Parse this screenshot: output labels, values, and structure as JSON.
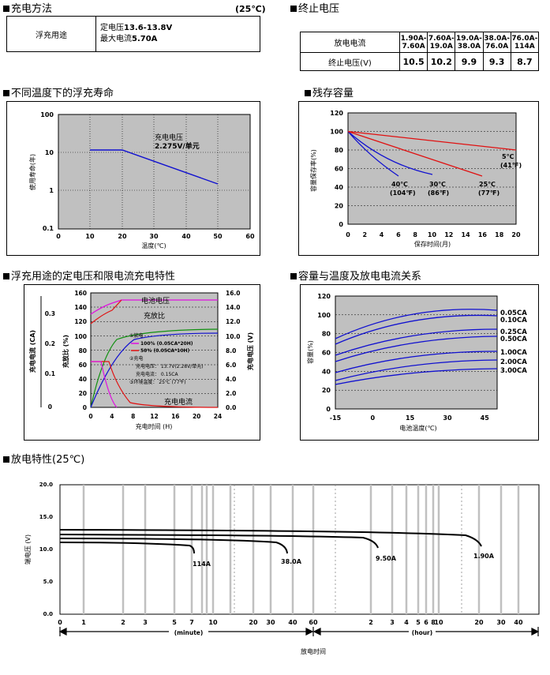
{
  "charging_method": {
    "title": "充电方法",
    "temp": "(25℃)",
    "row_label": "浮充用途",
    "line1_prefix": "定电压",
    "line1_value": "13.6-13.8V",
    "line2_prefix": "最大电流",
    "line2_value": "5.70A"
  },
  "cutoff_voltage": {
    "title": "终止电压",
    "row1_label": "放电电流",
    "row2_label": "终止电压(V)",
    "currents": [
      [
        "1.90A-",
        "7.60A"
      ],
      [
        "7.60A-",
        "19.0A"
      ],
      [
        "19.0A-",
        "38.0A"
      ],
      [
        "38.0A-",
        "76.0A"
      ],
      [
        "76.0A-",
        "114A"
      ]
    ],
    "voltages": [
      "10.5",
      "10.2",
      "9.9",
      "9.3",
      "8.7"
    ]
  },
  "float_life": {
    "title": "不同温度下的浮充寿命",
    "annotation_1": "充电电压",
    "annotation_2": "2.275V/单元",
    "y_label": "使用寿命(年)",
    "x_label": "温度(℃)",
    "y_ticks": [
      "100",
      "10",
      "1",
      "0.1"
    ],
    "x_ticks": [
      "0",
      "10",
      "20",
      "30",
      "40",
      "50",
      "60"
    ]
  },
  "residual": {
    "title": "残存容量",
    "y_label": "容量保存率(%)",
    "x_label": "保存时间(月)",
    "y_ticks": [
      "120",
      "100",
      "80",
      "60",
      "40",
      "20",
      "0"
    ],
    "x_ticks": [
      "0",
      "2",
      "4",
      "6",
      "8",
      "10",
      "12",
      "14",
      "16",
      "18",
      "20"
    ],
    "labels": [
      [
        "40℃",
        "(104℉)"
      ],
      [
        "30℃",
        "(86℉)"
      ],
      [
        "25℃",
        "(77℉)"
      ],
      [
        "5℃",
        "(41℉)"
      ]
    ]
  },
  "charge_char": {
    "title": "浮充用途的定电压和限电流充电特性",
    "left_axis1_ticks": [
      "0.3",
      "0.2",
      "0.1",
      "0"
    ],
    "left_axis2_ticks": [
      "160",
      "140",
      "120",
      "100",
      "80",
      "60",
      "40",
      "20",
      "0"
    ],
    "right_ticks": [
      "16.0",
      "14.0",
      "12.0",
      "10.0",
      "8.0",
      "6.0",
      "4.0",
      "2.0",
      "0.0"
    ],
    "x_ticks": [
      "0",
      "4",
      "8",
      "12",
      "16",
      "20",
      "24"
    ],
    "label_current": "充电电流 (CA)",
    "label_ratio": "充放比 (%)",
    "label_voltage": "充电电压 (V)",
    "x_label": "充电时间 (H)",
    "curve_voltage": "电池电压",
    "curve_ratio": "充放比",
    "curve_current": "充电电流",
    "legend": [
      "①放电",
      "100% (0.05CA*20H)",
      "50% (0.05CA*10H)",
      "②充电",
      "充电电压：  13.7V(2.28V/单元)",
      "充电电流：  0.15CA",
      "③环境温度：  25℃ (77℉)"
    ]
  },
  "cap_temp": {
    "title": "容量与温度及放电电流关系",
    "y_label": "容量(%)",
    "x_label": "电池温度(℃)",
    "y_ticks": [
      "120",
      "100",
      "80",
      "60",
      "40",
      "20",
      "0"
    ],
    "x_ticks": [
      "-15",
      "0",
      "15",
      "30",
      "45"
    ],
    "curve_labels": [
      "0.05CA",
      "0.10CA",
      "0.25CA",
      "0.50CA",
      "1.00CA",
      "2.00CA",
      "3.00CA"
    ]
  },
  "discharge": {
    "title": "放电特性(25℃)",
    "y_label": "端电压 (V)",
    "x_label": "放电时间",
    "y_ticks": [
      "20.0",
      "15.0",
      "10.0",
      "5.0",
      "0.0"
    ],
    "minute_ticks": [
      "0",
      "1",
      "2",
      "3",
      "5",
      "7",
      "10",
      "20",
      "30",
      "40",
      "60"
    ],
    "hour_ticks": [
      "2",
      "3",
      "4",
      "5",
      "6",
      "8",
      "10",
      "20",
      "30",
      "40"
    ],
    "minute_label": "(minute)",
    "hour_label": "(hour)",
    "curve_labels": [
      "114A",
      "38.0A",
      "9.50A",
      "1.90A"
    ]
  },
  "colors": {
    "blue": "#1010d0",
    "red": "#e01010",
    "green": "#109010",
    "magenta": "#e010e0",
    "gray": "#c0c0c0"
  }
}
